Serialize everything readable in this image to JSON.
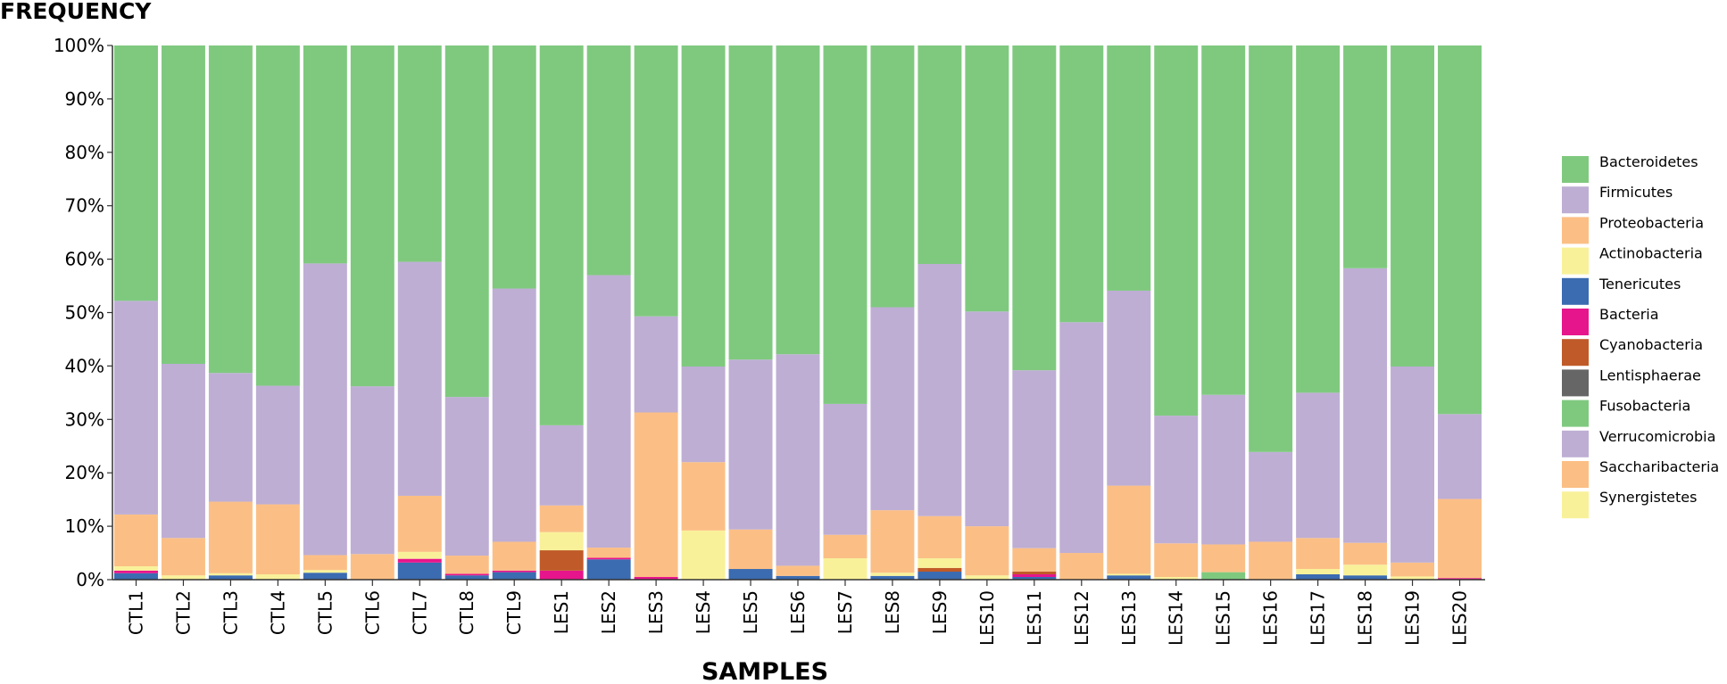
{
  "chart_data": {
    "type": "bar",
    "stacked": true,
    "percent": true,
    "title": "",
    "ylabel": "FREQUENCY",
    "xlabel": "SAMPLES",
    "ylim": [
      0,
      100
    ],
    "yticks": [
      "0%",
      "10%",
      "20%",
      "30%",
      "40%",
      "50%",
      "60%",
      "70%",
      "80%",
      "90%",
      "100%"
    ],
    "legend_position": "right",
    "categories": [
      "CTL1",
      "CTL2",
      "CTL3",
      "CTL4",
      "CTL5",
      "CTL6",
      "CTL7",
      "CTL8",
      "CTL9",
      "LES1",
      "LES2",
      "LES3",
      "LES4",
      "LES5",
      "LES6",
      "LES7",
      "LES8",
      "LES9",
      "LES10",
      "LES11",
      "LES12",
      "LES13",
      "LES14",
      "LES15",
      "LES16",
      "LES17",
      "LES18",
      "LES19",
      "LES20"
    ],
    "series": [
      {
        "name": "Tenericutes",
        "color": "#3b6bb0",
        "values": [
          1.2,
          0,
          0.8,
          0,
          1.3,
          0,
          3.2,
          0.8,
          1.4,
          0,
          3.8,
          0,
          0,
          2.0,
          0.7,
          0,
          0.7,
          1.5,
          0,
          0.5,
          0,
          0.8,
          0,
          0,
          0,
          1.0,
          0.8,
          0,
          0
        ]
      },
      {
        "name": "Bacteria",
        "color": "#e7158c",
        "values": [
          0.5,
          0,
          0,
          0,
          0,
          0,
          0.7,
          0.3,
          0.3,
          1.7,
          0.3,
          0.5,
          0,
          0,
          0,
          0,
          0,
          0,
          0,
          0.5,
          0,
          0,
          0,
          0,
          0,
          0,
          0,
          0,
          0.3
        ]
      },
      {
        "name": "Cyanobacteria",
        "color": "#c05a28",
        "values": [
          0,
          0,
          0,
          0,
          0,
          0,
          0,
          0,
          0,
          3.8,
          0,
          0,
          0,
          0,
          0,
          0,
          0,
          0.7,
          0,
          0.5,
          0,
          0,
          0,
          0,
          0,
          0,
          0,
          0,
          0
        ]
      },
      {
        "name": "Lentisphaerae",
        "color": "#666666",
        "values": [
          0,
          0,
          0,
          0,
          0,
          0,
          0,
          0,
          0,
          0,
          0,
          0,
          0,
          0,
          0,
          0,
          0,
          0,
          0,
          0,
          0,
          0,
          0,
          0,
          0,
          0,
          0,
          0,
          0
        ]
      },
      {
        "name": "Fusobacteria",
        "color": "#7fc97f",
        "values": [
          0,
          0,
          0,
          0,
          0,
          0,
          0,
          0,
          0,
          0,
          0,
          0,
          0,
          0,
          0,
          0,
          0,
          0,
          0,
          0,
          0,
          0,
          0,
          1.4,
          0,
          0,
          0,
          0,
          0
        ]
      },
      {
        "name": "Actinobacteria",
        "color": "#f9f19a",
        "values": [
          0.8,
          0.8,
          0.4,
          1.0,
          0.5,
          0,
          1.3,
          0,
          0,
          3.4,
          0,
          0,
          9.2,
          0,
          0,
          4.0,
          0.6,
          1.8,
          0.8,
          0,
          0,
          0.3,
          0.5,
          0,
          0,
          1.0,
          2.0,
          0.6,
          0
        ]
      },
      {
        "name": "Proteobacteria",
        "color": "#fbbf85",
        "values": [
          9.7,
          7.0,
          13.4,
          13.1,
          2.8,
          4.8,
          10.5,
          3.4,
          5.4,
          5.0,
          1.9,
          30.8,
          12.8,
          7.4,
          1.9,
          4.4,
          11.7,
          7.9,
          9.2,
          4.4,
          5.0,
          16.5,
          6.3,
          5.2,
          7.1,
          5.8,
          4.1,
          2.6,
          14.8
        ]
      },
      {
        "name": "Firmicutes",
        "color": "#beaed4",
        "values": [
          40.0,
          32.6,
          24.1,
          22.2,
          54.6,
          31.4,
          43.8,
          29.7,
          47.4,
          15.0,
          51.0,
          18.0,
          17.9,
          31.8,
          39.6,
          24.5,
          38.0,
          47.2,
          40.2,
          33.3,
          43.2,
          36.5,
          23.9,
          28.0,
          16.8,
          27.2,
          51.4,
          36.7,
          15.9
        ]
      },
      {
        "name": "Bacteroidetes",
        "color": "#7fc97f",
        "values": [
          47.8,
          59.6,
          61.3,
          63.7,
          40.8,
          63.8,
          40.5,
          65.8,
          45.5,
          71.1,
          43.0,
          50.7,
          60.1,
          58.8,
          57.8,
          67.1,
          49.0,
          40.9,
          49.8,
          60.8,
          51.8,
          45.9,
          69.3,
          65.4,
          76.1,
          65.0,
          41.7,
          60.1,
          69.0
        ]
      }
    ],
    "legend": [
      {
        "label": "Bacteroidetes",
        "color": "#7fc97f"
      },
      {
        "label": "Firmicutes",
        "color": "#beaed4"
      },
      {
        "label": "Proteobacteria",
        "color": "#fbbf85"
      },
      {
        "label": "Actinobacteria",
        "color": "#f9f19a"
      },
      {
        "label": "Tenericutes",
        "color": "#3b6bb0"
      },
      {
        "label": "Bacteria",
        "color": "#e7158c"
      },
      {
        "label": "Cyanobacteria",
        "color": "#c05a28"
      },
      {
        "label": "Lentisphaerae",
        "color": "#666666"
      },
      {
        "label": "Fusobacteria",
        "color": "#7fc97f"
      },
      {
        "label": "Verrucomicrobia",
        "color": "#beaed4"
      },
      {
        "label": "Saccharibacteria",
        "color": "#fbbf85"
      },
      {
        "label": "Synergistetes",
        "color": "#f9f19a"
      }
    ]
  }
}
